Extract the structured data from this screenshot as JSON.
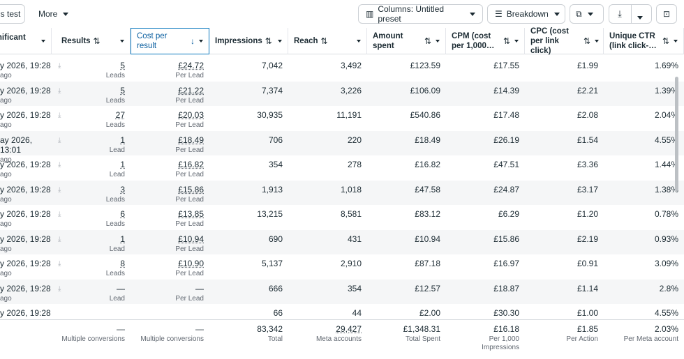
{
  "toolbar": {
    "test_label": "s test",
    "more_label": "More",
    "columns_label": "Columns: Untitled preset",
    "breakdown_label": "Breakdown"
  },
  "headers": {
    "significant": "Significant",
    "results": "Results",
    "cost_per_result": "Cost per result",
    "impressions": "Impressions",
    "reach": "Reach",
    "amount_spent": "Amount spent",
    "cpm": "CPM (cost per 1,000…",
    "cpc": "CPC (cost per link click)",
    "unique_ctr": "Unique CTR (link click-…"
  },
  "rows": [
    {
      "date": "y 2026, 19:28",
      "ago": "ago",
      "results": "5",
      "results_unit": "Leads",
      "cpr": "£24.72",
      "cpr_unit": "Per Lead",
      "impressions": "7,042",
      "reach": "3,492",
      "spent": "£123.59",
      "cpm": "£17.55",
      "cpc": "£1.99",
      "ctr": "1.69%"
    },
    {
      "date": "y 2026, 19:28",
      "ago": "ago",
      "results": "5",
      "results_unit": "Leads",
      "cpr": "£21.22",
      "cpr_unit": "Per Lead",
      "impressions": "7,374",
      "reach": "3,226",
      "spent": "£106.09",
      "cpm": "£14.39",
      "cpc": "£2.21",
      "ctr": "1.39%"
    },
    {
      "date": "y 2026, 19:28",
      "ago": "ago",
      "results": "27",
      "results_unit": "Leads",
      "cpr": "£20.03",
      "cpr_unit": "Per Lead",
      "impressions": "30,935",
      "reach": "11,191",
      "spent": "£540.86",
      "cpm": "£17.48",
      "cpc": "£2.08",
      "ctr": "2.04%"
    },
    {
      "date": "ay 2026, 13:01",
      "ago": "ago",
      "results": "1",
      "results_unit": "Lead",
      "cpr": "£18.49",
      "cpr_unit": "Per Lead",
      "impressions": "706",
      "reach": "220",
      "spent": "£18.49",
      "cpm": "£26.19",
      "cpc": "£1.54",
      "ctr": "4.55%"
    },
    {
      "date": "y 2026, 19:28",
      "ago": "ago",
      "results": "1",
      "results_unit": "Lead",
      "cpr": "£16.82",
      "cpr_unit": "Per Lead",
      "impressions": "354",
      "reach": "278",
      "spent": "£16.82",
      "cpm": "£47.51",
      "cpc": "£3.36",
      "ctr": "1.44%"
    },
    {
      "date": "y 2026, 19:28",
      "ago": "ago",
      "results": "3",
      "results_unit": "Leads",
      "cpr": "£15.86",
      "cpr_unit": "Per Lead",
      "impressions": "1,913",
      "reach": "1,018",
      "spent": "£47.58",
      "cpm": "£24.87",
      "cpc": "£3.17",
      "ctr": "1.38%"
    },
    {
      "date": "y 2026, 19:28",
      "ago": "ago",
      "results": "6",
      "results_unit": "Leads",
      "cpr": "£13.85",
      "cpr_unit": "Per Lead",
      "impressions": "13,215",
      "reach": "8,581",
      "spent": "£83.12",
      "cpm": "£6.29",
      "cpc": "£1.20",
      "ctr": "0.78%"
    },
    {
      "date": "y 2026, 19:28",
      "ago": "ago",
      "results": "1",
      "results_unit": "Lead",
      "cpr": "£10.94",
      "cpr_unit": "Per Lead",
      "impressions": "690",
      "reach": "431",
      "spent": "£10.94",
      "cpm": "£15.86",
      "cpc": "£2.19",
      "ctr": "0.93%"
    },
    {
      "date": "y 2026, 19:28",
      "ago": "ago",
      "results": "8",
      "results_unit": "Leads",
      "cpr": "£10.90",
      "cpr_unit": "Per Lead",
      "impressions": "5,137",
      "reach": "2,910",
      "spent": "£87.18",
      "cpm": "£16.97",
      "cpc": "£0.91",
      "ctr": "3.09%"
    },
    {
      "date": "y 2026, 19:28",
      "ago": "ago",
      "results": "—",
      "results_unit": "Lead",
      "cpr": "—",
      "cpr_unit": "Per Lead",
      "impressions": "666",
      "reach": "354",
      "spent": "£12.57",
      "cpm": "£18.87",
      "cpc": "£1.14",
      "ctr": "2.8%"
    },
    {
      "date": "y 2026, 19:28",
      "ago": "",
      "results": "",
      "results_unit": "",
      "cpr": "",
      "cpr_unit": "",
      "impressions": "66",
      "reach": "44",
      "spent": "£2.00",
      "cpm": "£30.30",
      "cpc": "£1.00",
      "ctr": "4.55%"
    }
  ],
  "totals": {
    "results": "—",
    "results_sub": "Multiple conversions",
    "cpr": "—",
    "cpr_sub": "Multiple conversions",
    "impressions": "83,342",
    "impressions_sub": "Total",
    "reach": "29,427",
    "reach_sub": "Meta accounts",
    "spent": "£1,348.31",
    "spent_sub": "Total Spent",
    "cpm": "£16.18",
    "cpm_sub": "Per 1,000 Impressions",
    "cpc": "£1.85",
    "cpc_sub": "Per Action",
    "ctr": "2.03%",
    "ctr_sub": "Per Meta account"
  },
  "icons": {
    "sort": "sort-arrows-icon",
    "download": "download-icon"
  },
  "colors": {
    "accent": "#0a78be"
  }
}
